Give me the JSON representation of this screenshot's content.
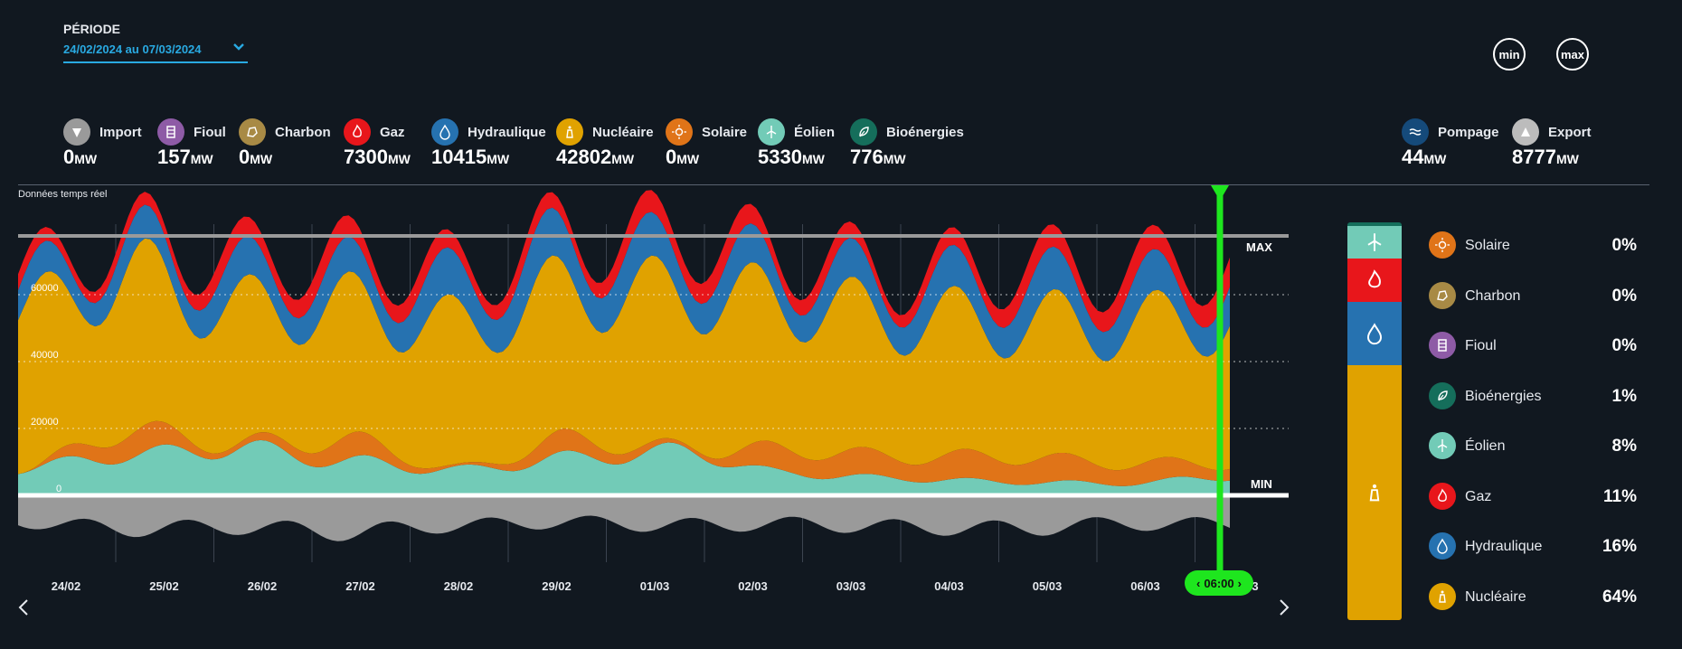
{
  "period": {
    "label": "PÉRIODE",
    "value": "24/02/2024 au 07/03/2024"
  },
  "buttons": {
    "min": "min",
    "max": "max"
  },
  "unit": "MW",
  "sources": [
    {
      "name": "Import",
      "value": "0",
      "color": "#9a9a9a",
      "icon": "import-arrow-icon"
    },
    {
      "name": "Fioul",
      "value": "157",
      "color": "#8e5ba6",
      "icon": "oil-barrel-icon"
    },
    {
      "name": "Charbon",
      "value": "0",
      "color": "#a88a45",
      "icon": "coal-icon"
    },
    {
      "name": "Gaz",
      "value": "7300",
      "color": "#e8161b",
      "icon": "flame-icon"
    },
    {
      "name": "Hydraulique",
      "value": "10415",
      "color": "#2672b0",
      "icon": "water-drop-icon"
    },
    {
      "name": "Nucléaire",
      "value": "42802",
      "color": "#e0a200",
      "icon": "nuclear-plant-icon"
    },
    {
      "name": "Solaire",
      "value": "0",
      "color": "#e07418",
      "icon": "sun-icon"
    },
    {
      "name": "Éolien",
      "value": "5330",
      "color": "#72cbb7",
      "icon": "wind-turbine-icon"
    },
    {
      "name": "Bioénergies",
      "value": "776",
      "color": "#156e5b",
      "icon": "leaf-icon"
    }
  ],
  "exchanges": [
    {
      "name": "Pompage",
      "value": "44",
      "color": "#154a7a",
      "icon": "waves-icon"
    },
    {
      "name": "Export",
      "value": "8777",
      "color": "#bcbcbc",
      "icon": "export-arrow-icon"
    }
  ],
  "realtime_label": "Données temps réel",
  "chart_data": {
    "type": "area",
    "x": [
      "24/02",
      "25/02",
      "26/02",
      "27/02",
      "28/02",
      "29/02",
      "01/03",
      "02/03",
      "03/03",
      "04/03",
      "05/03",
      "06/03"
    ],
    "x_last_tick_partial": "3",
    "y_ticks": [
      "0",
      "20000",
      "40000",
      "60000"
    ],
    "ylim": [
      -15000,
      78000
    ],
    "max_label": "MAX",
    "min_label": "MIN",
    "cursor_time": "06:00",
    "stack_order": [
      "Éolien",
      "Solaire",
      "Nucléaire",
      "Hydraulique",
      "Gaz"
    ],
    "series": [
      {
        "name": "Éolien",
        "color": "#72cbb7",
        "values": [
          8000,
          12000,
          14000,
          10000,
          7500,
          11000,
          13000,
          6500,
          5000,
          4000,
          3500,
          5500
        ]
      },
      {
        "name": "Solaire",
        "color": "#e07418",
        "values": [
          0,
          7000,
          1500,
          6000,
          500,
          5500,
          1000,
          7000,
          6500,
          7500,
          6000,
          4000
        ]
      },
      {
        "name": "Nucléaire",
        "color": "#e0a200",
        "values": [
          46000,
          46000,
          40000,
          40000,
          42000,
          44000,
          46000,
          44000,
          41000,
          40000,
          41000,
          42800
        ]
      },
      {
        "name": "Hydraulique",
        "color": "#2672b0",
        "values": [
          8000,
          8500,
          10000,
          9000,
          12000,
          12500,
          11000,
          9500,
          10000,
          11000,
          10500,
          10400
        ]
      },
      {
        "name": "Gaz",
        "color": "#e8161b",
        "values": [
          4000,
          3500,
          5500,
          6000,
          5000,
          4500,
          6500,
          5000,
          4000,
          6000,
          6500,
          7300
        ]
      },
      {
        "name": "Export",
        "color": "#9a9a9a",
        "values": [
          -8000,
          -10000,
          -9500,
          -11000,
          -9000,
          -8000,
          -9000,
          -8500,
          -9500,
          -10000,
          -8500,
          -8700
        ]
      }
    ]
  },
  "mix": [
    {
      "name": "Solaire",
      "pct": "0%",
      "color": "#e07418",
      "icon": "sun-icon"
    },
    {
      "name": "Charbon",
      "pct": "0%",
      "color": "#a88a45",
      "icon": "coal-icon"
    },
    {
      "name": "Fioul",
      "pct": "0%",
      "color": "#8e5ba6",
      "icon": "oil-barrel-icon"
    },
    {
      "name": "Bioénergies",
      "pct": "1%",
      "color": "#156e5b",
      "icon": "leaf-icon"
    },
    {
      "name": "Éolien",
      "pct": "8%",
      "color": "#72cbb7",
      "icon": "wind-turbine-icon"
    },
    {
      "name": "Gaz",
      "pct": "11%",
      "color": "#e8161b",
      "icon": "flame-icon"
    },
    {
      "name": "Hydraulique",
      "pct": "16%",
      "color": "#2672b0",
      "icon": "water-drop-icon"
    },
    {
      "name": "Nucléaire",
      "pct": "64%",
      "color": "#e0a200",
      "icon": "nuclear-plant-icon"
    }
  ]
}
